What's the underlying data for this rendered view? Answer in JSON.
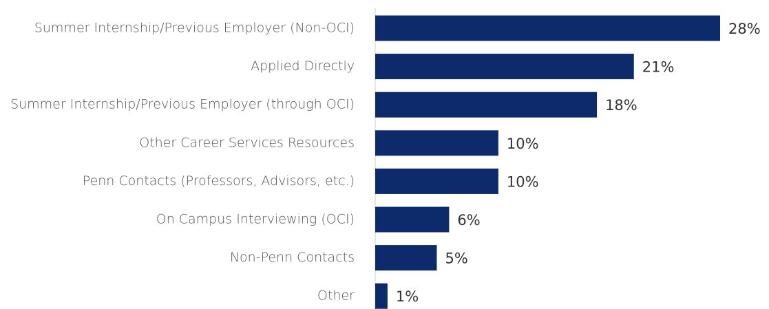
{
  "chart_data": {
    "type": "hbar",
    "categories": [
      "Summer Internship/Previous Employer (Non-OCI)",
      "Applied Directly",
      "Summer Internship/Previous Employer (through OCI)",
      "Other Career Services Resources",
      "Penn Contacts (Professors, Advisors, etc.)",
      "On Campus Interviewing (OCI)",
      "Non-Penn Contacts",
      "Other"
    ],
    "values": [
      28,
      21,
      18,
      10,
      10,
      6,
      5,
      1
    ],
    "value_labels": [
      "28%",
      "21%",
      "18%",
      "10%",
      "10%",
      "6%",
      "5%",
      "1%"
    ],
    "color": "#0d2a6b",
    "xlim": [
      0,
      28
    ]
  }
}
